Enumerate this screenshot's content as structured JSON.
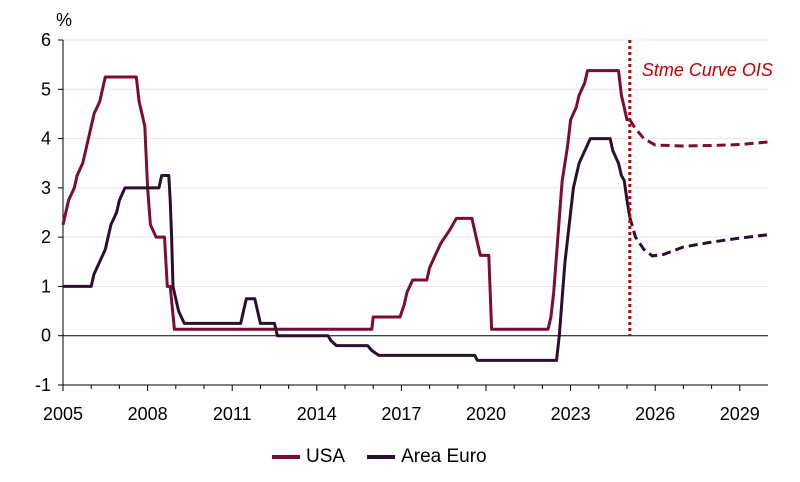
{
  "chart_data": {
    "type": "line",
    "unit": "%",
    "ylim": [
      -1,
      6
    ],
    "yticks": [
      "-1",
      "0",
      "1",
      "2",
      "3",
      "4",
      "5",
      "6"
    ],
    "xlim": [
      2005,
      2030
    ],
    "xticks": [
      "2005",
      "2008",
      "2011",
      "2014",
      "2017",
      "2020",
      "2023",
      "2026",
      "2029"
    ],
    "grid": "horizontal",
    "legend_position": "bottom",
    "annotation": {
      "text": "Stme Curve OIS",
      "x": 2025.1,
      "color": "#C00000"
    },
    "series": [
      {
        "name": "USA",
        "color": "#7B0C37",
        "points": [
          [
            2005.0,
            2.25
          ],
          [
            2005.1,
            2.5
          ],
          [
            2005.2,
            2.75
          ],
          [
            2005.4,
            3.0
          ],
          [
            2005.5,
            3.25
          ],
          [
            2005.7,
            3.5
          ],
          [
            2005.8,
            3.75
          ],
          [
            2005.9,
            4.0
          ],
          [
            2006.0,
            4.25
          ],
          [
            2006.1,
            4.5
          ],
          [
            2006.3,
            4.75
          ],
          [
            2006.4,
            5.0
          ],
          [
            2006.5,
            5.25
          ],
          [
            2007.6,
            5.25
          ],
          [
            2007.7,
            4.75
          ],
          [
            2007.8,
            4.5
          ],
          [
            2007.9,
            4.25
          ],
          [
            2008.0,
            3.0
          ],
          [
            2008.1,
            2.25
          ],
          [
            2008.3,
            2.0
          ],
          [
            2008.6,
            2.0
          ],
          [
            2008.7,
            1.0
          ],
          [
            2008.8,
            1.0
          ],
          [
            2008.95,
            0.13
          ],
          [
            2015.95,
            0.13
          ],
          [
            2016.0,
            0.38
          ],
          [
            2016.95,
            0.38
          ],
          [
            2017.1,
            0.63
          ],
          [
            2017.2,
            0.88
          ],
          [
            2017.4,
            1.13
          ],
          [
            2017.9,
            1.13
          ],
          [
            2018.0,
            1.38
          ],
          [
            2018.2,
            1.63
          ],
          [
            2018.4,
            1.88
          ],
          [
            2018.7,
            2.13
          ],
          [
            2018.95,
            2.38
          ],
          [
            2019.5,
            2.38
          ],
          [
            2019.6,
            2.13
          ],
          [
            2019.7,
            1.88
          ],
          [
            2019.8,
            1.63
          ],
          [
            2020.1,
            1.63
          ],
          [
            2020.2,
            0.13
          ],
          [
            2022.2,
            0.13
          ],
          [
            2022.3,
            0.38
          ],
          [
            2022.4,
            0.88
          ],
          [
            2022.5,
            1.63
          ],
          [
            2022.6,
            2.38
          ],
          [
            2022.7,
            3.13
          ],
          [
            2022.9,
            3.88
          ],
          [
            2023.0,
            4.38
          ],
          [
            2023.2,
            4.63
          ],
          [
            2023.3,
            4.88
          ],
          [
            2023.5,
            5.13
          ],
          [
            2023.6,
            5.38
          ],
          [
            2024.7,
            5.38
          ],
          [
            2024.8,
            4.88
          ],
          [
            2024.9,
            4.63
          ],
          [
            2025.0,
            4.38
          ],
          [
            2025.1,
            4.38
          ]
        ],
        "forecast_points": [
          [
            2025.1,
            4.38
          ],
          [
            2025.3,
            4.2
          ],
          [
            2025.6,
            4.0
          ],
          [
            2026.0,
            3.87
          ],
          [
            2027.0,
            3.85
          ],
          [
            2028.0,
            3.86
          ],
          [
            2029.0,
            3.88
          ],
          [
            2030.0,
            3.93
          ]
        ]
      },
      {
        "name": "Area Euro",
        "color": "#2B0F2E",
        "points": [
          [
            2005.0,
            1.0
          ],
          [
            2006.0,
            1.0
          ],
          [
            2006.1,
            1.25
          ],
          [
            2006.3,
            1.5
          ],
          [
            2006.5,
            1.75
          ],
          [
            2006.6,
            2.0
          ],
          [
            2006.7,
            2.25
          ],
          [
            2006.9,
            2.5
          ],
          [
            2007.0,
            2.75
          ],
          [
            2007.2,
            3.0
          ],
          [
            2008.4,
            3.0
          ],
          [
            2008.5,
            3.25
          ],
          [
            2008.75,
            3.25
          ],
          [
            2008.8,
            2.75
          ],
          [
            2008.85,
            2.0
          ],
          [
            2008.9,
            1.0
          ],
          [
            2009.0,
            0.75
          ],
          [
            2009.1,
            0.5
          ],
          [
            2009.3,
            0.25
          ],
          [
            2011.3,
            0.25
          ],
          [
            2011.4,
            0.5
          ],
          [
            2011.5,
            0.75
          ],
          [
            2011.8,
            0.75
          ],
          [
            2011.9,
            0.5
          ],
          [
            2012.0,
            0.25
          ],
          [
            2012.5,
            0.25
          ],
          [
            2012.6,
            0.0
          ],
          [
            2014.4,
            0.0
          ],
          [
            2014.5,
            -0.1
          ],
          [
            2014.7,
            -0.2
          ],
          [
            2015.8,
            -0.2
          ],
          [
            2015.95,
            -0.3
          ],
          [
            2016.2,
            -0.4
          ],
          [
            2019.6,
            -0.4
          ],
          [
            2019.7,
            -0.5
          ],
          [
            2022.5,
            -0.5
          ],
          [
            2022.6,
            0.0
          ],
          [
            2022.7,
            0.75
          ],
          [
            2022.8,
            1.5
          ],
          [
            2022.9,
            2.0
          ],
          [
            2023.0,
            2.5
          ],
          [
            2023.1,
            3.0
          ],
          [
            2023.3,
            3.5
          ],
          [
            2023.5,
            3.75
          ],
          [
            2023.7,
            4.0
          ],
          [
            2024.4,
            4.0
          ],
          [
            2024.5,
            3.75
          ],
          [
            2024.7,
            3.5
          ],
          [
            2024.8,
            3.25
          ],
          [
            2024.9,
            3.15
          ],
          [
            2025.0,
            2.75
          ],
          [
            2025.1,
            2.4
          ]
        ],
        "forecast_points": [
          [
            2025.1,
            2.4
          ],
          [
            2025.3,
            2.0
          ],
          [
            2025.6,
            1.75
          ],
          [
            2025.9,
            1.62
          ],
          [
            2026.3,
            1.65
          ],
          [
            2027.0,
            1.8
          ],
          [
            2028.0,
            1.9
          ],
          [
            2029.0,
            1.98
          ],
          [
            2030.0,
            2.05
          ]
        ]
      }
    ]
  }
}
